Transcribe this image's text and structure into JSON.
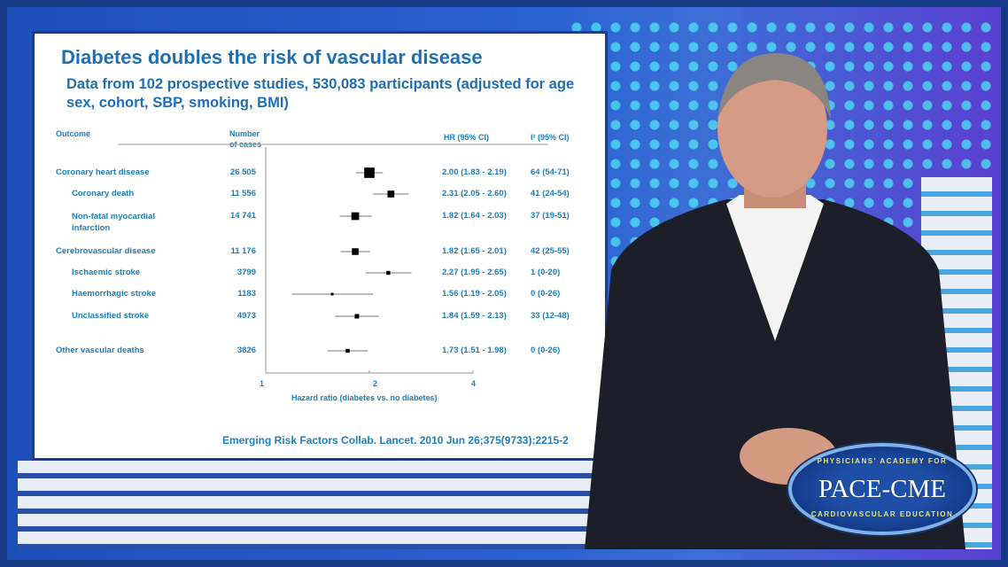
{
  "slide": {
    "title": "Diabetes doubles the risk of vascular disease",
    "subtitle": "Data from 102 prospective studies, 530,083 participants (adjusted for age sex, cohort, SBP, smoking, BMI)",
    "citation": "Emerging Risk Factors Collab. Lancet. 2010 Jun 26;375(9733):2215-2"
  },
  "chart_data": {
    "type": "forest",
    "columns": {
      "outcome": "Outcome",
      "cases_line1": "Number",
      "cases_line2": "of cases",
      "hr": "HR (95% CI)",
      "i2": "I² (95% CI)"
    },
    "xlabel": "Hazard ratio (diabetes vs. no diabetes)",
    "xscale": "log",
    "xticks": [
      "1",
      "2",
      "4"
    ],
    "xlim": [
      1,
      4
    ],
    "rows": [
      {
        "outcome": "Coronary heart disease",
        "indent": false,
        "cases": "26 505",
        "hr": 2.0,
        "lo": 1.83,
        "hi": 2.19,
        "hr_text": "2.00 (1.83 - 2.19)",
        "i2": "64 (54-71)"
      },
      {
        "outcome": "Coronary death",
        "indent": true,
        "cases": "11 556",
        "hr": 2.31,
        "lo": 2.05,
        "hi": 2.6,
        "hr_text": "2.31 (2.05 - 2.60)",
        "i2": "41 (24-54)"
      },
      {
        "outcome": "Non-fatal myocardial infarction",
        "indent": true,
        "cases": "14 741",
        "hr": 1.82,
        "lo": 1.64,
        "hi": 2.03,
        "hr_text": "1.82 (1.64 - 2.03)",
        "i2": "37 (19-51)"
      },
      {
        "outcome": "Cerebrovascular disease",
        "indent": false,
        "cases": "11 176",
        "hr": 1.82,
        "lo": 1.65,
        "hi": 2.01,
        "hr_text": "1.82 (1.65 - 2.01)",
        "i2": "42 (25-55)"
      },
      {
        "outcome": "Ischaemic stroke",
        "indent": true,
        "cases": "3799",
        "hr": 2.27,
        "lo": 1.95,
        "hi": 2.65,
        "hr_text": "2.27 (1.95 - 2.65)",
        "i2": "1 (0-20)"
      },
      {
        "outcome": "Haemorrhagic stroke",
        "indent": true,
        "cases": "1183",
        "hr": 1.56,
        "lo": 1.19,
        "hi": 2.05,
        "hr_text": "1.56 (1.19 - 2.05)",
        "i2": "0 (0-26)"
      },
      {
        "outcome": "Unclassified stroke",
        "indent": true,
        "cases": "4973",
        "hr": 1.84,
        "lo": 1.59,
        "hi": 2.13,
        "hr_text": "1.84 (1.59 - 2.13)",
        "i2": "33 (12-48)"
      },
      {
        "outcome": "Other vascular deaths",
        "indent": false,
        "cases": "3826",
        "hr": 1.73,
        "lo": 1.51,
        "hi": 1.98,
        "hr_text": "1.73 (1.51 - 1.98)",
        "i2": "0 (0-26)"
      }
    ]
  },
  "logo": {
    "name": "PACE-CME",
    "top_text": "PHYSICIANS' ACADEMY FOR",
    "bottom_text": "CARDIOVASCULAR EDUCATION"
  },
  "colors": {
    "slide_text": "#1f7fc0",
    "frame": "#163a85",
    "dots": "#4fe3f5"
  }
}
